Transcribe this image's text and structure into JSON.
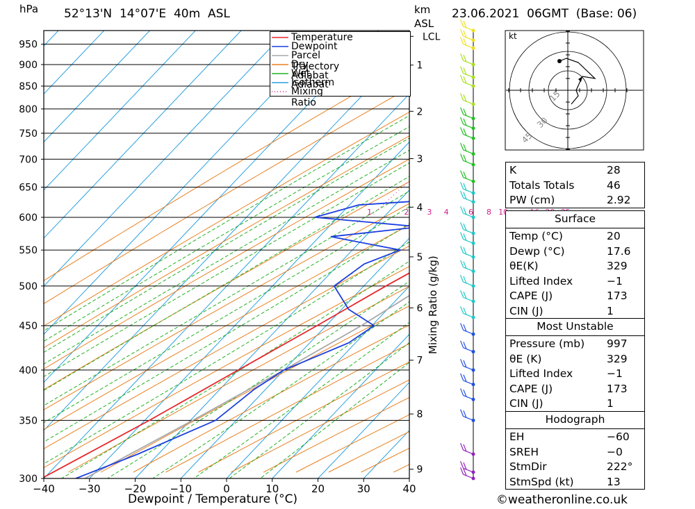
{
  "header": {
    "location": "52°13'N  14°07'E  40m  ASL",
    "datetime": "23.06.2021  06GMT  (Base: 06)",
    "left_unit": "hPa",
    "km_unit": "km",
    "asl_unit": "ASL"
  },
  "chart_data": {
    "type": "line",
    "title": "52°13'N  14°07'E  40m  ASL",
    "xlabel": "Dewpoint / Temperature (°C)",
    "ylabel": "hPa",
    "y_right_label": "Mixing Ratio (g/kg)",
    "xlim": [
      -40,
      40
    ],
    "ylim_hpa": [
      985,
      300
    ],
    "x_ticks": [
      "−40",
      "−30",
      "−20",
      "−10",
      "0",
      "10",
      "20",
      "30",
      "40"
    ],
    "pressure_ticks": [
      "300",
      "350",
      "400",
      "450",
      "500",
      "550",
      "600",
      "650",
      "700",
      "750",
      "800",
      "850",
      "900",
      "950"
    ],
    "km_ticks": [
      "1",
      "2",
      "3",
      "4",
      "5",
      "6",
      "7",
      "8",
      "9"
    ],
    "lcl_label": "LCL",
    "mixing_ratio_labels": [
      "1",
      "2",
      "3",
      "4",
      "6",
      "8",
      "10",
      "16",
      "20",
      "25"
    ],
    "series": [
      {
        "name": "Temperature",
        "color": "#e8262b",
        "points": [
          [
            985,
            20.0
          ],
          [
            950,
            18.2
          ],
          [
            900,
            17.0
          ],
          [
            850,
            15.2
          ],
          [
            820,
            14.0
          ],
          [
            800,
            18.0
          ],
          [
            780,
            17.0
          ],
          [
            760,
            16.6
          ],
          [
            740,
            15.8
          ],
          [
            700,
            13.4
          ],
          [
            680,
            12.5
          ],
          [
            650,
            9.5
          ],
          [
            630,
            8.7
          ],
          [
            600,
            9.0
          ],
          [
            580,
            5.2
          ],
          [
            550,
            1.6
          ],
          [
            500,
            -5.2
          ],
          [
            450,
            -12.0
          ],
          [
            400,
            -20.0
          ],
          [
            350,
            -29.0
          ],
          [
            300,
            -40.5
          ]
        ]
      },
      {
        "name": "Dewpoint",
        "color": "#1a3ee0",
        "points": [
          [
            985,
            17.6
          ],
          [
            950,
            17.0
          ],
          [
            900,
            14.5
          ],
          [
            860,
            11.0
          ],
          [
            800,
            -2.5
          ],
          [
            780,
            -0.2
          ],
          [
            770,
            3.0
          ],
          [
            760,
            -1.5
          ],
          [
            750,
            -2.0
          ],
          [
            700,
            0.6
          ],
          [
            660,
            -3.0
          ],
          [
            640,
            -9.0
          ],
          [
            630,
            -9.5
          ],
          [
            620,
            -28.0
          ],
          [
            600,
            -35.0
          ],
          [
            585,
            -10.0
          ],
          [
            570,
            -27.5
          ],
          [
            550,
            -9.5
          ],
          [
            530,
            -14.5
          ],
          [
            500,
            -16.5
          ],
          [
            470,
            -8.5
          ],
          [
            450,
            0.5
          ],
          [
            430,
            -1.5
          ],
          [
            400,
            -10.0
          ],
          [
            380,
            -12.5
          ],
          [
            350,
            -14.5
          ],
          [
            320,
            -24.5
          ],
          [
            300,
            -33.0
          ]
        ]
      },
      {
        "name": "Parcel Trajectory",
        "color": "#a8a8a8",
        "points": [
          [
            985,
            20.0
          ],
          [
            930,
            17.5
          ],
          [
            880,
            15.6
          ],
          [
            850,
            16.0
          ],
          [
            800,
            17.2
          ],
          [
            750,
            16.5
          ],
          [
            700,
            14.8
          ],
          [
            650,
            12.8
          ],
          [
            600,
            10.5
          ],
          [
            550,
            7.5
          ],
          [
            500,
            3.3
          ],
          [
            450,
            -2.3
          ],
          [
            400,
            -10.0
          ],
          [
            350,
            -19.5
          ],
          [
            300,
            -31.0
          ]
        ]
      }
    ],
    "background_lines": [
      "Dry Adiabat",
      "Wet Adiabat",
      "Isotherm",
      "Mixing Ratio"
    ],
    "legend_position": "top-right"
  },
  "legend": {
    "items": [
      {
        "label": "Temperature",
        "color": "#e8262b",
        "style": "solid"
      },
      {
        "label": "Dewpoint",
        "color": "#1a3ee0",
        "style": "solid"
      },
      {
        "label": "Parcel Trajectory",
        "color": "#a8a8a8",
        "style": "solid"
      },
      {
        "label": "Dry Adiabat",
        "color": "#e88020",
        "style": "solid"
      },
      {
        "label": "Wet Adiabat",
        "color": "#20b020",
        "style": "solid"
      },
      {
        "label": "Isotherm",
        "color": "#2aa0e0",
        "style": "solid"
      },
      {
        "label": "Mixing Ratio",
        "color": "#d0208a",
        "style": "dotted"
      }
    ]
  },
  "wind_profile": {
    "colors_by_level": [
      "#f0e020",
      "#a8e020",
      "#20c020",
      "#20c8c8",
      "#2050e0",
      "#9020c0"
    ]
  },
  "hodograph": {
    "unit_label": "kt",
    "ring_labels": [
      "15",
      "30",
      "45"
    ]
  },
  "indices": {
    "top": [
      {
        "label": "K",
        "value": "28"
      },
      {
        "label": "Totals Totals",
        "value": "46"
      },
      {
        "label": "PW (cm)",
        "value": "2.92"
      }
    ],
    "surface": {
      "title": "Surface",
      "rows": [
        {
          "label": "Temp (°C)",
          "value": "20"
        },
        {
          "label": "Dewp (°C)",
          "value": "17.6"
        },
        {
          "label": "θE(K)",
          "value": "329"
        },
        {
          "label": "Lifted Index",
          "value": "−1"
        },
        {
          "label": "CAPE (J)",
          "value": "173"
        },
        {
          "label": "CIN (J)",
          "value": "1"
        }
      ]
    },
    "most_unstable": {
      "title": "Most Unstable",
      "rows": [
        {
          "label": "Pressure (mb)",
          "value": "997"
        },
        {
          "label": "θE (K)",
          "value": "329"
        },
        {
          "label": "Lifted Index",
          "value": "−1"
        },
        {
          "label": "CAPE (J)",
          "value": "173"
        },
        {
          "label": "CIN (J)",
          "value": "1"
        }
      ]
    },
    "hodograph_box": {
      "title": "Hodograph",
      "rows": [
        {
          "label": "EH",
          "value": "−60"
        },
        {
          "label": "SREH",
          "value": "−0"
        },
        {
          "label": "StmDir",
          "value": "222°"
        },
        {
          "label": "StmSpd (kt)",
          "value": "13"
        }
      ]
    }
  },
  "footer": {
    "copyright": "©weatheronline.co.uk"
  }
}
